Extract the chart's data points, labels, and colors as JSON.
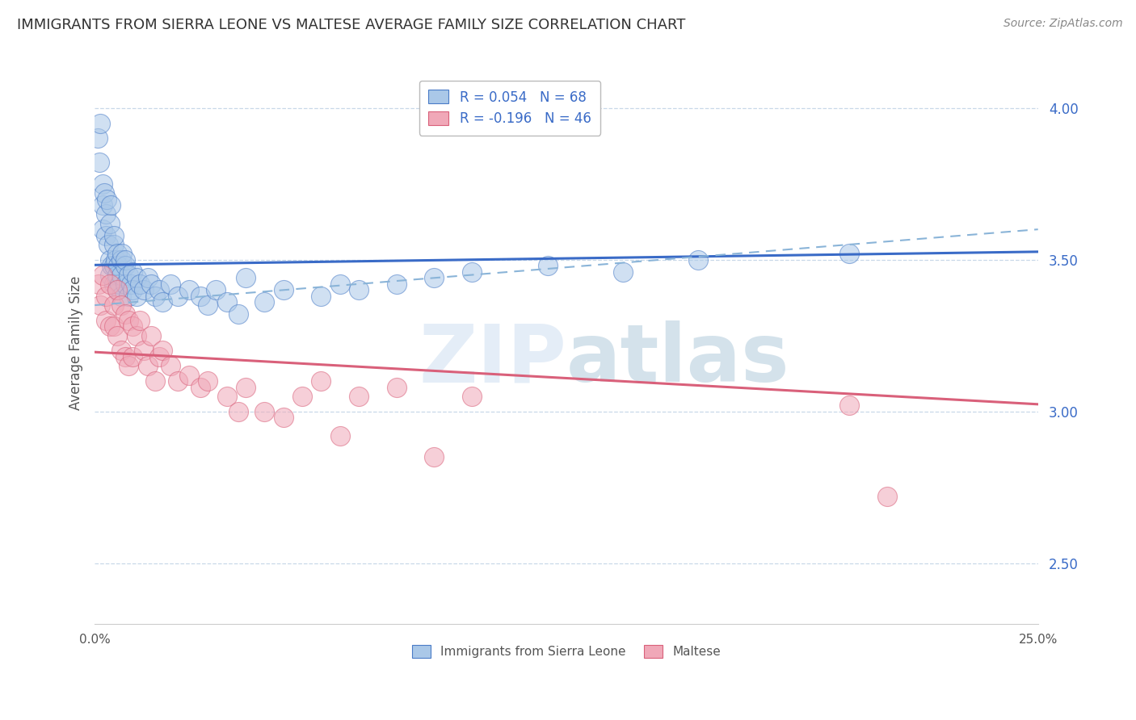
{
  "title": "IMMIGRANTS FROM SIERRA LEONE VS MALTESE AVERAGE FAMILY SIZE CORRELATION CHART",
  "source": "Source: ZipAtlas.com",
  "ylabel": "Average Family Size",
  "xlim": [
    0.0,
    0.25
  ],
  "ylim": [
    2.3,
    4.15
  ],
  "yticks": [
    2.5,
    3.0,
    3.5,
    4.0
  ],
  "ytick_labels": [
    "2.50",
    "3.00",
    "3.50",
    "4.00"
  ],
  "blue_R": 0.054,
  "blue_N": 68,
  "pink_R": -0.196,
  "pink_N": 46,
  "blue_scatter_x": [
    0.0008,
    0.0012,
    0.0015,
    0.002,
    0.002,
    0.0022,
    0.0025,
    0.003,
    0.003,
    0.0032,
    0.0035,
    0.004,
    0.004,
    0.004,
    0.0042,
    0.0045,
    0.005,
    0.005,
    0.005,
    0.0052,
    0.0055,
    0.006,
    0.006,
    0.006,
    0.0062,
    0.0065,
    0.007,
    0.007,
    0.007,
    0.0072,
    0.008,
    0.008,
    0.0082,
    0.009,
    0.009,
    0.0095,
    0.01,
    0.01,
    0.011,
    0.011,
    0.012,
    0.013,
    0.014,
    0.015,
    0.016,
    0.017,
    0.018,
    0.02,
    0.022,
    0.025,
    0.028,
    0.03,
    0.032,
    0.035,
    0.038,
    0.04,
    0.045,
    0.05,
    0.06,
    0.065,
    0.07,
    0.08,
    0.09,
    0.1,
    0.12,
    0.14,
    0.16,
    0.2
  ],
  "blue_scatter_y": [
    3.9,
    3.82,
    3.95,
    3.75,
    3.68,
    3.6,
    3.72,
    3.65,
    3.58,
    3.7,
    3.55,
    3.62,
    3.5,
    3.45,
    3.68,
    3.48,
    3.55,
    3.48,
    3.42,
    3.58,
    3.5,
    3.52,
    3.45,
    3.4,
    3.48,
    3.42,
    3.5,
    3.45,
    3.38,
    3.52,
    3.48,
    3.42,
    3.5,
    3.45,
    3.38,
    3.42,
    3.46,
    3.4,
    3.44,
    3.38,
    3.42,
    3.4,
    3.44,
    3.42,
    3.38,
    3.4,
    3.36,
    3.42,
    3.38,
    3.4,
    3.38,
    3.35,
    3.4,
    3.36,
    3.32,
    3.44,
    3.36,
    3.4,
    3.38,
    3.42,
    3.4,
    3.42,
    3.44,
    3.46,
    3.48,
    3.46,
    3.5,
    3.52
  ],
  "pink_scatter_x": [
    0.001,
    0.0015,
    0.002,
    0.003,
    0.003,
    0.004,
    0.004,
    0.005,
    0.005,
    0.006,
    0.006,
    0.007,
    0.007,
    0.008,
    0.008,
    0.009,
    0.009,
    0.01,
    0.01,
    0.011,
    0.012,
    0.013,
    0.014,
    0.015,
    0.016,
    0.017,
    0.018,
    0.02,
    0.022,
    0.025,
    0.028,
    0.03,
    0.035,
    0.038,
    0.04,
    0.045,
    0.05,
    0.055,
    0.06,
    0.065,
    0.07,
    0.08,
    0.09,
    0.1,
    0.2,
    0.21
  ],
  "pink_scatter_y": [
    3.42,
    3.35,
    3.45,
    3.38,
    3.3,
    3.42,
    3.28,
    3.35,
    3.28,
    3.4,
    3.25,
    3.35,
    3.2,
    3.32,
    3.18,
    3.3,
    3.15,
    3.28,
    3.18,
    3.25,
    3.3,
    3.2,
    3.15,
    3.25,
    3.1,
    3.18,
    3.2,
    3.15,
    3.1,
    3.12,
    3.08,
    3.1,
    3.05,
    3.0,
    3.08,
    3.0,
    2.98,
    3.05,
    3.1,
    2.92,
    3.05,
    3.08,
    2.85,
    3.05,
    3.02,
    2.72
  ],
  "blue_line_color": "#3a6bc7",
  "blue_dash_color": "#8ab4d8",
  "pink_line_color": "#d9607a",
  "scatter_blue_face": "#aac8e8",
  "scatter_blue_edge": "#4a7cc7",
  "scatter_pink_face": "#f0a8b8",
  "scatter_pink_edge": "#d9607a",
  "grid_color": "#c8d8e8",
  "background_color": "#ffffff",
  "legend_border_color": "#bbbbbb",
  "title_color": "#333333",
  "source_color": "#888888"
}
